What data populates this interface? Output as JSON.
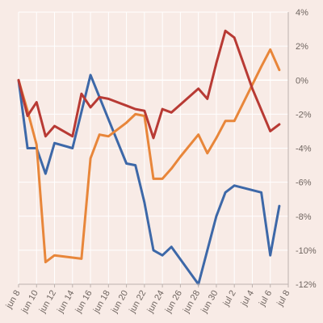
{
  "chart_data": {
    "type": "line",
    "x_tick_labels": [
      "jun 8",
      "jun 10",
      "jun 12",
      "jun 14",
      "jun 16",
      "jun 18",
      "jun 20",
      "jun 22",
      "jun 24",
      "jun 26",
      "jun 28",
      "jun 30",
      "jul 2",
      "jul 4",
      "jul 6",
      "jul 8"
    ],
    "y_tick_labels": [
      "4%",
      "2%",
      "0%",
      "-2%",
      "-4%",
      "-6%",
      "-8%",
      "-10%",
      "-12%"
    ],
    "ylim": [
      -12,
      4
    ],
    "y_axis_side": "right",
    "grid": true,
    "dates": [
      "jun 8",
      "jun 9",
      "jun 10",
      "jun 11",
      "jun 12",
      "jun 13",
      "jun 14",
      "jun 15",
      "jun 16",
      "jun 17",
      "jun 18",
      "jun 19",
      "jun 20",
      "jun 21",
      "jun 22",
      "jun 23",
      "jun 24",
      "jun 25",
      "jun 26",
      "jun 27",
      "jun 28",
      "jun 29",
      "jun 30",
      "jul 1",
      "jul 2",
      "jul 3",
      "jul 4",
      "jul 5",
      "jul 6",
      "jul 7",
      "jul 8"
    ],
    "series": [
      {
        "color": "#3d68a8",
        "points": [
          [
            "jun 8",
            0
          ],
          [
            "jun 9",
            -4.0
          ],
          [
            "jun 10",
            -4.0
          ],
          [
            "jun 11",
            -5.5
          ],
          [
            "jun 12",
            -3.7
          ],
          [
            "jun 14",
            -4.0
          ],
          [
            "jun 16",
            0.3
          ],
          [
            "jun 18",
            -2.3
          ],
          [
            "jun 20",
            -4.9
          ],
          [
            "jun 21",
            -5.0
          ],
          [
            "jun 22",
            -7.2
          ],
          [
            "jun 23",
            -10.0
          ],
          [
            "jun 24",
            -10.3
          ],
          [
            "jun 25",
            -9.8
          ],
          [
            "jun 28",
            -12.0
          ],
          [
            "jun 30",
            -8.0
          ],
          [
            "jul 1",
            -6.6
          ],
          [
            "jul 2",
            -6.2
          ],
          [
            "jul 5",
            -6.6
          ],
          [
            "jul 6",
            -10.3
          ],
          [
            "jul 7",
            -7.4
          ]
        ]
      },
      {
        "color": "#e8863a",
        "points": [
          [
            "jun 8",
            0
          ],
          [
            "jun 9",
            -1.8
          ],
          [
            "jun 10",
            -3.8
          ],
          [
            "jun 11",
            -10.7
          ],
          [
            "jun 12",
            -10.3
          ],
          [
            "jun 15",
            -10.5
          ],
          [
            "jun 16",
            -4.6
          ],
          [
            "jun 17",
            -3.2
          ],
          [
            "jun 18",
            -3.3
          ],
          [
            "jun 20",
            -2.5
          ],
          [
            "jun 21",
            -2.0
          ],
          [
            "jun 22",
            -2.1
          ],
          [
            "jun 23",
            -5.8
          ],
          [
            "jun 24",
            -5.8
          ],
          [
            "jun 25",
            -5.2
          ],
          [
            "jun 26",
            -4.5
          ],
          [
            "jun 28",
            -3.2
          ],
          [
            "jun 29",
            -4.3
          ],
          [
            "jun 30",
            -3.4
          ],
          [
            "jul 1",
            -2.4
          ],
          [
            "jul 2",
            -2.4
          ],
          [
            "jul 5",
            0.8
          ],
          [
            "jul 6",
            1.8
          ],
          [
            "jul 7",
            0.6
          ]
        ]
      },
      {
        "color": "#b83a34",
        "points": [
          [
            "jun 8",
            0
          ],
          [
            "jun 9",
            -2.1
          ],
          [
            "jun 10",
            -1.3
          ],
          [
            "jun 11",
            -3.3
          ],
          [
            "jun 12",
            -2.7
          ],
          [
            "jun 14",
            -3.3
          ],
          [
            "jun 15",
            -0.8
          ],
          [
            "jun 16",
            -1.6
          ],
          [
            "jun 17",
            -1.0
          ],
          [
            "jun 18",
            -1.1
          ],
          [
            "jun 20",
            -1.5
          ],
          [
            "jun 21",
            -1.7
          ],
          [
            "jun 22",
            -1.8
          ],
          [
            "jun 23",
            -3.4
          ],
          [
            "jun 24",
            -1.7
          ],
          [
            "jun 25",
            -1.9
          ],
          [
            "jun 28",
            -0.5
          ],
          [
            "jun 29",
            -1.1
          ],
          [
            "jun 30",
            1.0
          ],
          [
            "jul 1",
            2.9
          ],
          [
            "jul 2",
            2.5
          ],
          [
            "jul 4",
            -0.5
          ],
          [
            "jul 6",
            -3.0
          ],
          [
            "jul 7",
            -2.6
          ]
        ]
      }
    ]
  }
}
